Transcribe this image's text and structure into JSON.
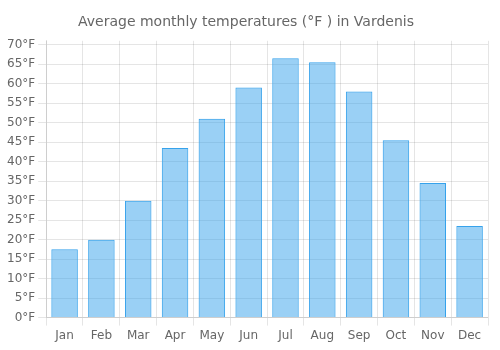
{
  "chart_data": {
    "type": "bar",
    "title": "Average monthly temperatures (°F ) in Vardenis",
    "categories": [
      "Jan",
      "Feb",
      "Mar",
      "Apr",
      "May",
      "Jun",
      "Jul",
      "Aug",
      "Sep",
      "Oct",
      "Nov",
      "Dec"
    ],
    "values": [
      17.5,
      20.0,
      30.0,
      43.5,
      51.0,
      59.0,
      66.5,
      65.5,
      58.0,
      45.5,
      34.5,
      23.5
    ],
    "ylim": [
      0,
      71
    ],
    "yticks": [
      {
        "value": 0,
        "label": "0°F"
      },
      {
        "value": 5,
        "label": "5°F"
      },
      {
        "value": 10,
        "label": "10°F"
      },
      {
        "value": 15,
        "label": "15°F"
      },
      {
        "value": 20,
        "label": "20°F"
      },
      {
        "value": 25,
        "label": "25°F"
      },
      {
        "value": 30,
        "label": "30°F"
      },
      {
        "value": 35,
        "label": "35°F"
      },
      {
        "value": 40,
        "label": "40°F"
      },
      {
        "value": 45,
        "label": "45°F"
      },
      {
        "value": 50,
        "label": "50°F"
      },
      {
        "value": 55,
        "label": "55°F"
      },
      {
        "value": 60,
        "label": "60°F"
      },
      {
        "value": 65,
        "label": "65°F"
      },
      {
        "value": 70,
        "label": "70°F"
      }
    ],
    "grid": true
  }
}
